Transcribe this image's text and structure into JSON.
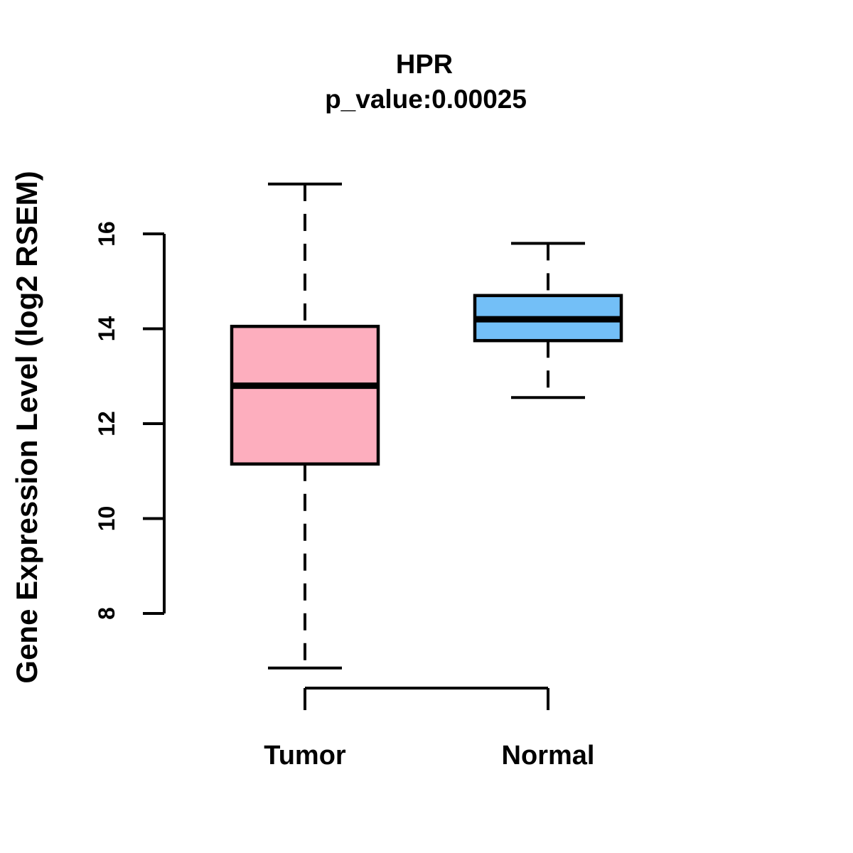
{
  "title": "HPR",
  "subtitle": "p_value:0.00025",
  "ylabel": "Gene Expression Level (log2 RSEM)",
  "colors": {
    "tumor_fill": "#FDAEBE",
    "normal_fill": "#73BFF7",
    "line": "#000000",
    "background": "#FFFFFF"
  },
  "chart_data": {
    "type": "boxplot",
    "title": "HPR",
    "subtitle": "p_value:0.00025",
    "xlabel": "",
    "ylabel": "Gene Expression Level (log2 RSEM)",
    "categories": [
      "Tumor",
      "Normal"
    ],
    "y_ticks": [
      8,
      10,
      12,
      14,
      16
    ],
    "y_axis_range": [
      8,
      16
    ],
    "ylim": [
      6.5,
      17.3
    ],
    "grid": false,
    "legend": false,
    "series": [
      {
        "name": "Tumor",
        "whisker_low": 6.85,
        "q1": 11.15,
        "median": 12.8,
        "q3": 14.05,
        "whisker_high": 17.05,
        "fill": "#FDAEBE"
      },
      {
        "name": "Normal",
        "whisker_low": 12.55,
        "q1": 13.75,
        "median": 14.2,
        "q3": 14.7,
        "whisker_high": 15.8,
        "fill": "#73BFF7"
      }
    ]
  }
}
